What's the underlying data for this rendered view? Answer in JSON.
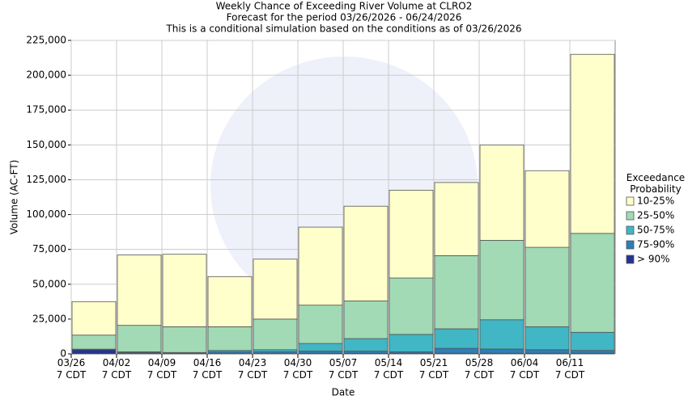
{
  "chart_data": {
    "type": "bar",
    "title": "Weekly Chance of Exceeding River Volume at CLRO2",
    "subtitle": "Forecast for the period 03/26/2026 - 06/24/2026",
    "subtitle2": "This is a conditional simulation based on the conditions as of 03/26/2026",
    "x_label": "Date",
    "y_label": "Volume (AC-FT)",
    "legend_title": "Exceedance Probability",
    "stacked": true,
    "grid": true,
    "categories": [
      "03/26 7 CDT",
      "04/02 7 CDT",
      "04/09 7 CDT",
      "04/16 7 CDT",
      "04/23 7 CDT",
      "04/30 7 CDT",
      "05/07 7 CDT",
      "05/14 7 CDT",
      "05/21 7 CDT",
      "05/28 7 CDT",
      "06/04 7 CDT",
      "06/11 7 CDT"
    ],
    "series": [
      {
        "name": "> 90%",
        "color": "#253494",
        "values": [
          3000,
          300,
          200,
          300,
          300,
          500,
          500,
          500,
          500,
          500,
          500,
          500
        ]
      },
      {
        "name": "75-90%",
        "color": "#2c7fb8",
        "values": [
          200,
          700,
          300,
          1200,
          1200,
          1500,
          1500,
          1000,
          3500,
          3000,
          2500,
          2000
        ]
      },
      {
        "name": "50-75%",
        "color": "#41b6c4",
        "values": [
          200,
          500,
          500,
          1000,
          1500,
          5500,
          9000,
          12500,
          14000,
          21000,
          16500,
          13000
        ]
      },
      {
        "name": "25-50%",
        "color": "#a1dab4",
        "values": [
          10100,
          19000,
          18500,
          17000,
          22000,
          27500,
          27000,
          40500,
          52500,
          57000,
          57000,
          71000
        ]
      },
      {
        "name": "10-25%",
        "color": "#ffffcc",
        "values": [
          24000,
          50500,
          52000,
          36000,
          43000,
          56000,
          68000,
          63000,
          52500,
          68500,
          55000,
          128500
        ]
      }
    ],
    "ylim": [
      0,
      225000
    ],
    "yticks": [
      0,
      {
        "value": 25000,
        "label": "25,000"
      },
      {
        "value": 50000,
        "label": "50,000"
      },
      {
        "value": 75000,
        "label": "75,000"
      },
      {
        "value": 100000,
        "label": "100,000"
      },
      {
        "value": 125000,
        "label": "125,000"
      },
      {
        "value": 150000,
        "label": "150,000"
      },
      {
        "value": 175000,
        "label": "175,000"
      },
      {
        "value": 200000,
        "label": "200,000"
      },
      {
        "value": 225000,
        "label": "225,000"
      }
    ]
  }
}
